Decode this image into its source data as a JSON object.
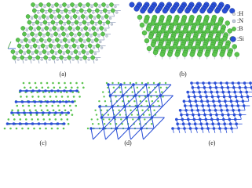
{
  "panels": [
    {
      "label": "(a)"
    },
    {
      "label": "(b)"
    },
    {
      "label": "(c)"
    },
    {
      "label": "(d)"
    },
    {
      "label": "(e)"
    }
  ],
  "legend": [
    {
      "label": ":H"
    },
    {
      "label": ":N"
    },
    {
      "label": ":B"
    },
    {
      "label": ":Si"
    }
  ]
}
